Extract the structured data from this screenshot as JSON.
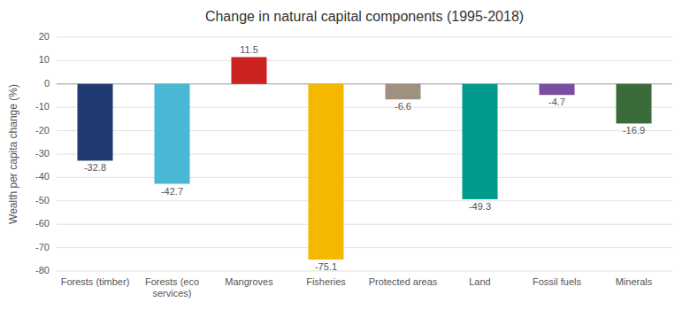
{
  "chart_data": {
    "type": "bar",
    "title": "Change in natural capital components (1995-2018)",
    "categories": [
      "Forests (timber)",
      "Forests (eco\nservices)",
      "Mangroves",
      "Fisheries",
      "Protected areas",
      "Land",
      "Fossil fuels",
      "Minerals"
    ],
    "values": [
      -32.8,
      -42.7,
      11.5,
      -75.1,
      -6.6,
      -49.3,
      -4.7,
      -16.9
    ],
    "colors": [
      "#1f3a6e",
      "#4ab8d4",
      "#cc2222",
      "#f5b800",
      "#a09080",
      "#009b8d",
      "#7b4fa0",
      "#3a6b3a"
    ],
    "ylabel": "Wealth per capita change (%)",
    "ylim": [
      -80,
      20
    ],
    "yticks": [
      -80,
      -70,
      -60,
      -50,
      -40,
      -30,
      -20,
      -10,
      0,
      10,
      20
    ],
    "grid": true,
    "data_labels": true
  }
}
